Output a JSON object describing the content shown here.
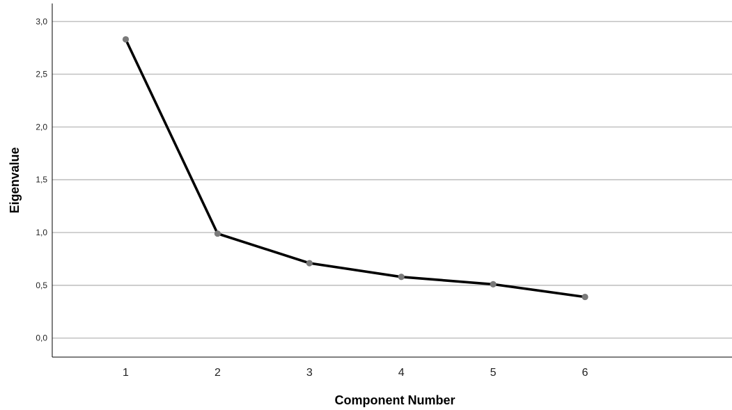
{
  "chart_data": {
    "type": "line",
    "title": "",
    "xlabel": "Component Number",
    "ylabel": "Eigenvalue",
    "x": [
      1,
      2,
      3,
      4,
      5,
      6
    ],
    "x_tick_labels": [
      "1",
      "2",
      "3",
      "4",
      "5",
      "6"
    ],
    "series": [
      {
        "values": [
          2.83,
          0.99,
          0.71,
          0.58,
          0.51,
          0.39
        ]
      }
    ],
    "y_ticks": [
      0.0,
      0.5,
      1.0,
      1.5,
      2.0,
      2.5,
      3.0
    ],
    "y_tick_labels": [
      "0,0",
      "0,5",
      "1,0",
      "1,5",
      "2,0",
      "2,5",
      "3,0"
    ],
    "ylim": [
      -0.18,
      3.17
    ],
    "xlim": [
      0.2,
      7.6
    ],
    "grid": "horizontal",
    "legend": "none",
    "colors": {
      "line": "#000000",
      "marker": "#7a7a7a",
      "grid": "#bdbdbd"
    }
  }
}
